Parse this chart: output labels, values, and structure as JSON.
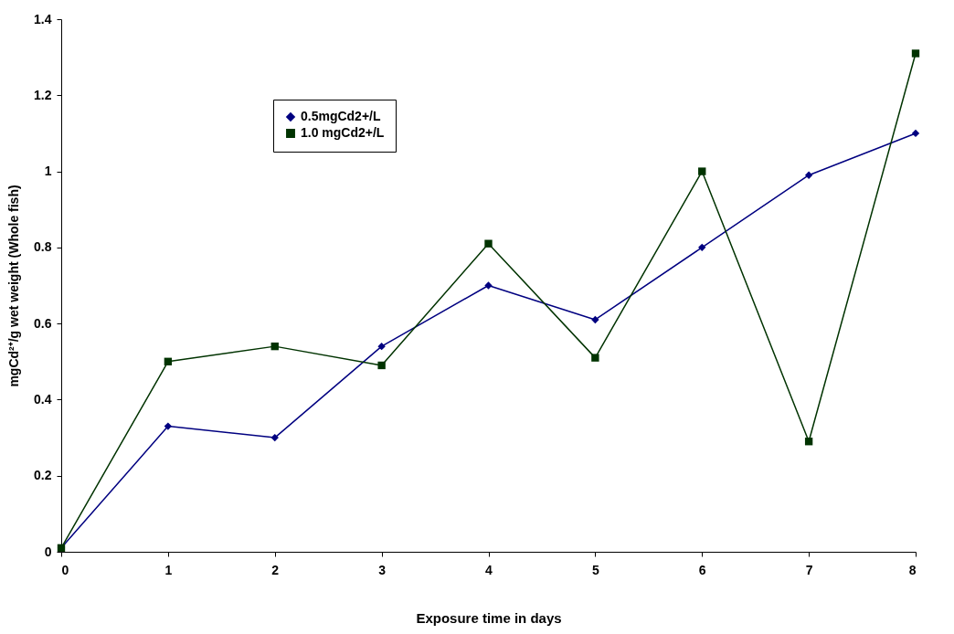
{
  "chart_data": {
    "type": "line",
    "xlabel": "Exposure time in days",
    "ylabel": "mgCd²⁺/g wet weight (Whole fish)",
    "x": [
      0,
      1,
      2,
      3,
      4,
      5,
      6,
      7,
      8
    ],
    "series": [
      {
        "name": "0.5mgCd2+/L",
        "color": "#000080",
        "marker": "diamond",
        "values": [
          0.01,
          0.33,
          0.3,
          0.54,
          0.7,
          0.61,
          0.8,
          0.99,
          1.1
        ]
      },
      {
        "name": "1.0 mgCd2+/L",
        "color": "#003300",
        "marker": "square",
        "values": [
          0.01,
          0.5,
          0.54,
          0.49,
          0.81,
          0.51,
          1.0,
          0.29,
          1.31
        ]
      }
    ],
    "xlim": [
      0,
      8
    ],
    "xticks": [
      0,
      1,
      2,
      3,
      4,
      5,
      6,
      7,
      8
    ],
    "ylim": [
      0,
      1.4
    ],
    "yticks": [
      0,
      0.2,
      0.4,
      0.6,
      0.8,
      1,
      1.2,
      1.4
    ],
    "grid": false,
    "legend": "top",
    "line_style": "solid"
  }
}
